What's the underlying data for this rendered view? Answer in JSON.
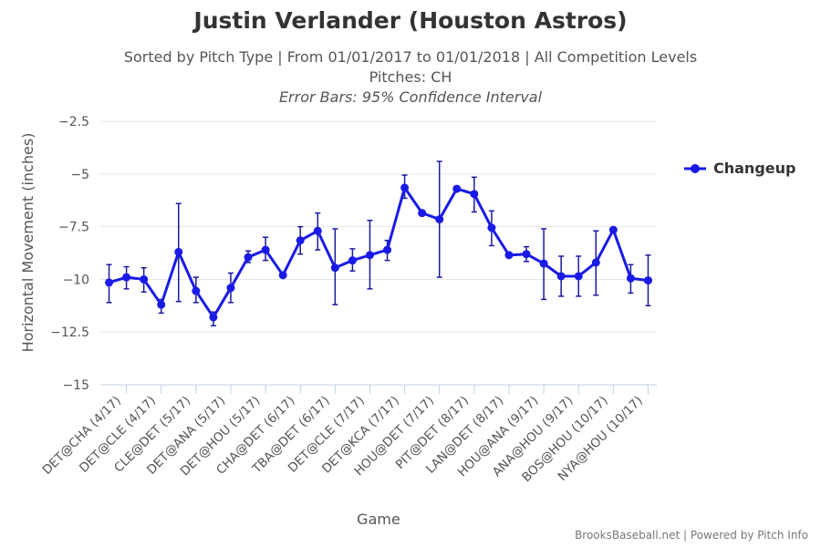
{
  "title": "Justin Verlander (Houston Astros)",
  "subtitle_line1": "Sorted by Pitch Type | From 01/01/2017 to 01/01/2018 | All Competition Levels",
  "subtitle_line2": "Pitches: CH",
  "subtitle_line3": "Error Bars: 95% Confidence Interval",
  "credits": "BrooksBaseball.net | Powered by Pitch Info",
  "colors": {
    "series": "#1a1ae6",
    "grid": "#e6e6e6",
    "axis": "#c0d0e0"
  },
  "chart_data": {
    "type": "line",
    "title": "Justin Verlander (Houston Astros)",
    "xlabel": "Game",
    "ylabel": "Horizontal Movement (inches)",
    "ylim": [
      -15,
      -1.5
    ],
    "yticks": [
      -2.5,
      -5,
      -7.5,
      -10,
      -12.5,
      -15
    ],
    "ytick_labels": [
      "−2.5",
      "−5",
      "−7.5",
      "−10",
      "−12.5",
      "−15"
    ],
    "legend": "top-right",
    "categories": [
      "DET@CHA (4/17)",
      "",
      "DET@CLE (4/17)",
      "",
      "CLE@DET (5/17)",
      "",
      "DET@ANA (5/17)",
      "",
      "DET@HOU (5/17)",
      "",
      "CHA@DET (6/17)",
      "",
      "TBA@DET (6/17)",
      "",
      "DET@CLE (7/17)",
      "",
      "DET@KCA (7/17)",
      "",
      "HOU@DET (7/17)",
      "",
      "PIT@DET (8/17)",
      "",
      "LAN@DET (8/17)",
      "",
      "HOU@ANA (9/17)",
      "",
      "ANA@HOU (9/17)",
      "",
      "BOS@HOU (10/17)",
      "",
      "NYA@HOU (10/17)",
      ""
    ],
    "series": [
      {
        "name": "Changeup",
        "values": [
          -10.15,
          -9.9,
          -10.0,
          -11.2,
          -8.7,
          -10.55,
          -11.8,
          -10.4,
          -8.95,
          -8.6,
          -9.8,
          -8.15,
          -7.7,
          -9.45,
          -9.1,
          -8.85,
          -8.6,
          -5.65,
          -6.85,
          -7.15,
          -5.7,
          -5.95,
          -7.55,
          -8.85,
          -8.8,
          -9.25,
          -9.85,
          -9.85,
          -9.2,
          -7.65,
          -9.95,
          -10.05
        ],
        "ci_low": [
          -11.1,
          -10.45,
          -10.6,
          -11.6,
          -11.05,
          -11.1,
          -12.2,
          -11.1,
          -9.2,
          -9.1,
          -9.85,
          -8.8,
          -8.6,
          -11.2,
          -9.6,
          -10.45,
          -9.1,
          -6.15,
          -6.85,
          -9.9,
          -5.7,
          -6.8,
          -8.4,
          -8.85,
          -9.15,
          -10.95,
          -10.8,
          -10.8,
          -10.75,
          -7.65,
          -10.65,
          -11.25
        ],
        "ci_high": [
          -9.3,
          -9.4,
          -9.45,
          -10.95,
          -6.4,
          -9.9,
          -11.55,
          -9.7,
          -8.65,
          -8.0,
          -9.75,
          -7.5,
          -6.85,
          -7.6,
          -8.55,
          -7.2,
          -8.15,
          -5.05,
          -6.85,
          -4.4,
          -5.7,
          -5.15,
          -6.75,
          -8.85,
          -8.45,
          -7.6,
          -8.9,
          -8.9,
          -7.7,
          -7.65,
          -9.3,
          -8.85
        ]
      }
    ]
  }
}
